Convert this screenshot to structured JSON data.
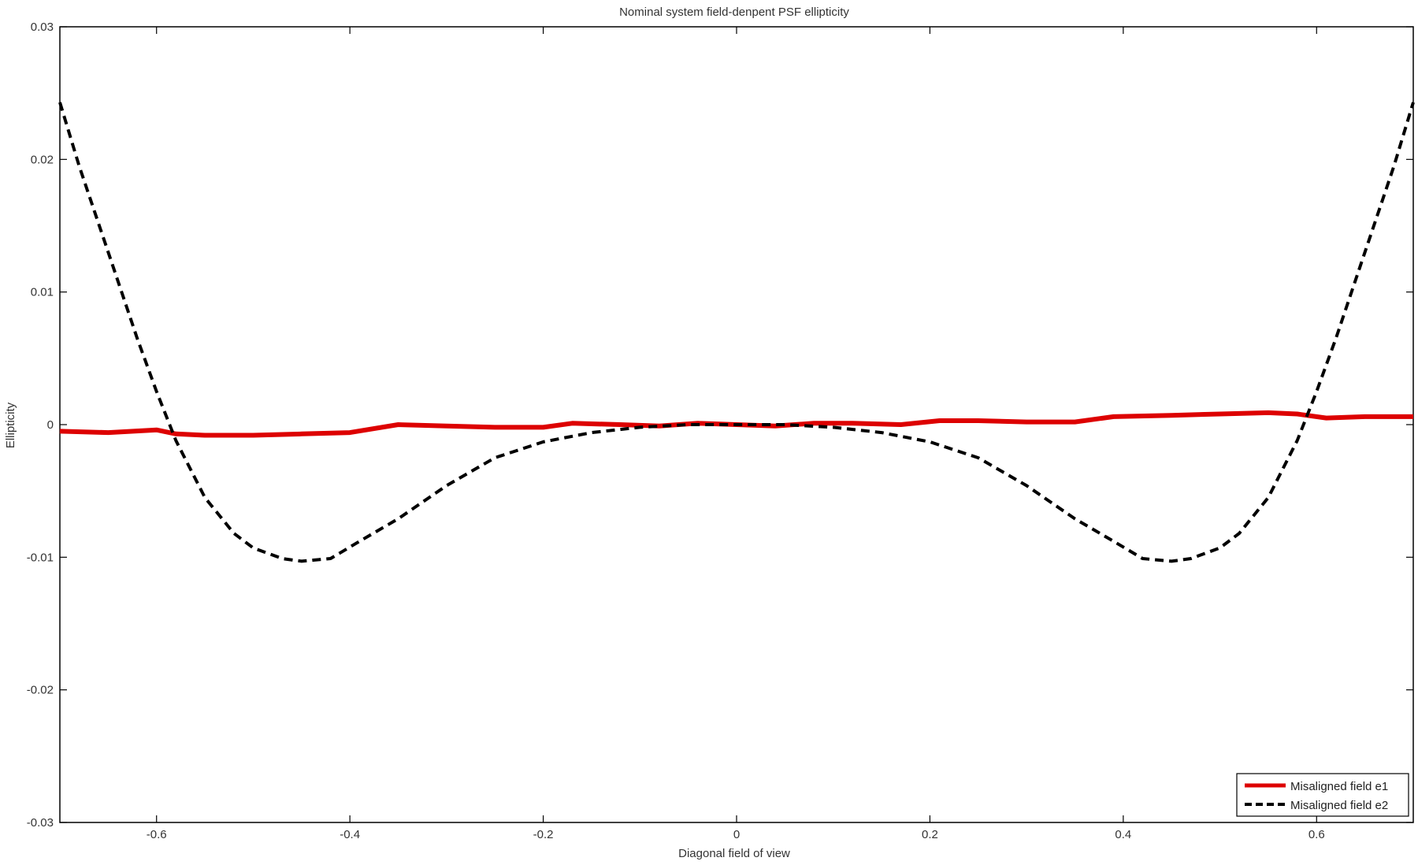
{
  "chart_data": {
    "type": "line",
    "title": "Nominal system field-denpent PSF ellipticity",
    "xlabel": "Diagonal field of view",
    "ylabel": "Ellipticity",
    "xlim": [
      -0.7,
      0.7
    ],
    "ylim": [
      -0.03,
      0.03
    ],
    "x_ticks": [
      -0.6,
      -0.4,
      -0.2,
      0,
      0.2,
      0.4,
      0.6
    ],
    "x_tick_labels": [
      "-0.6",
      "-0.4",
      "-0.2",
      "0",
      "0.2",
      "0.4",
      "0.6"
    ],
    "y_ticks": [
      -0.03,
      -0.02,
      -0.01,
      0,
      0.01,
      0.02,
      0.03
    ],
    "y_tick_labels": [
      "-0.03",
      "-0.02",
      "-0.01",
      "0",
      "0.01",
      "0.02",
      "0.03"
    ],
    "grid": false,
    "legend_position": "bottom-right",
    "series": [
      {
        "name": "Misaligned field e1",
        "color": "#dd0000",
        "style": "solid",
        "points": [
          [
            -0.7,
            -0.0005
          ],
          [
            -0.65,
            -0.0006
          ],
          [
            -0.6,
            -0.0004
          ],
          [
            -0.58,
            -0.0007
          ],
          [
            -0.55,
            -0.0008
          ],
          [
            -0.5,
            -0.0008
          ],
          [
            -0.45,
            -0.0007
          ],
          [
            -0.4,
            -0.0006
          ],
          [
            -0.35,
            0.0
          ],
          [
            -0.3,
            -0.0001
          ],
          [
            -0.25,
            -0.0002
          ],
          [
            -0.2,
            -0.0002
          ],
          [
            -0.17,
            0.0001
          ],
          [
            -0.12,
            0.0
          ],
          [
            -0.08,
            -0.0001
          ],
          [
            -0.04,
            0.0001
          ],
          [
            0.0,
            0.0
          ],
          [
            0.04,
            -0.0001
          ],
          [
            0.08,
            0.0001
          ],
          [
            0.12,
            0.0001
          ],
          [
            0.17,
            0.0
          ],
          [
            0.21,
            0.0003
          ],
          [
            0.25,
            0.0003
          ],
          [
            0.3,
            0.0002
          ],
          [
            0.35,
            0.0002
          ],
          [
            0.39,
            0.0006
          ],
          [
            0.45,
            0.0007
          ],
          [
            0.5,
            0.0008
          ],
          [
            0.55,
            0.0009
          ],
          [
            0.58,
            0.0008
          ],
          [
            0.61,
            0.0005
          ],
          [
            0.65,
            0.0006
          ],
          [
            0.7,
            0.0006
          ]
        ]
      },
      {
        "name": "Misaligned field e2",
        "color": "#000000",
        "style": "dashed",
        "points": [
          [
            -0.7,
            0.0243
          ],
          [
            -0.68,
            0.0195
          ],
          [
            -0.65,
            0.013
          ],
          [
            -0.62,
            0.0065
          ],
          [
            -0.6,
            0.0025
          ],
          [
            -0.58,
            -0.0012
          ],
          [
            -0.55,
            -0.0055
          ],
          [
            -0.52,
            -0.0082
          ],
          [
            -0.5,
            -0.0093
          ],
          [
            -0.47,
            -0.0101
          ],
          [
            -0.45,
            -0.0103
          ],
          [
            -0.42,
            -0.0101
          ],
          [
            -0.39,
            -0.0088
          ],
          [
            -0.35,
            -0.0071
          ],
          [
            -0.3,
            -0.0046
          ],
          [
            -0.25,
            -0.0025
          ],
          [
            -0.2,
            -0.0013
          ],
          [
            -0.15,
            -0.0006
          ],
          [
            -0.1,
            -0.0002
          ],
          [
            -0.05,
            0.0
          ],
          [
            0.0,
            0.0
          ],
          [
            0.05,
            0.0
          ],
          [
            0.1,
            -0.0002
          ],
          [
            0.15,
            -0.0006
          ],
          [
            0.2,
            -0.0013
          ],
          [
            0.25,
            -0.0025
          ],
          [
            0.3,
            -0.0046
          ],
          [
            0.35,
            -0.0071
          ],
          [
            0.39,
            -0.0088
          ],
          [
            0.42,
            -0.0101
          ],
          [
            0.45,
            -0.0103
          ],
          [
            0.47,
            -0.0101
          ],
          [
            0.5,
            -0.0093
          ],
          [
            0.52,
            -0.0082
          ],
          [
            0.55,
            -0.0055
          ],
          [
            0.58,
            -0.0012
          ],
          [
            0.6,
            0.0025
          ],
          [
            0.62,
            0.0065
          ],
          [
            0.65,
            0.013
          ],
          [
            0.68,
            0.0195
          ],
          [
            0.7,
            0.0243
          ]
        ]
      }
    ]
  }
}
